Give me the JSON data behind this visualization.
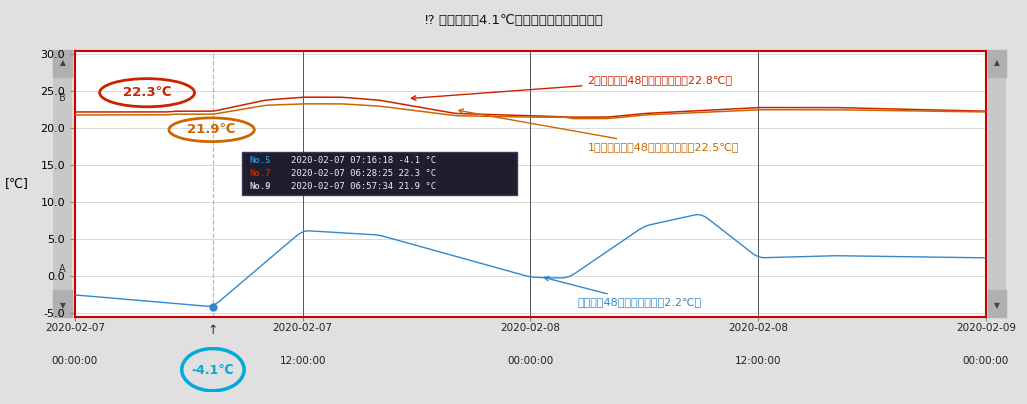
{
  "title": "⁉ 最低気温－4.1℃を観測した時の室内温度",
  "ylabel": "[℃]",
  "ylim": [
    -5.5,
    30.5
  ],
  "yticks": [
    -5.0,
    0.0,
    5.0,
    10.0,
    15.0,
    20.0,
    25.0,
    30.0
  ],
  "bg_color": "#e0e0e0",
  "plot_bg_color": "#ffffff",
  "border_color": "#cc0000",
  "grid_color": "#cccccc",
  "line2f_color": "#cc2200",
  "line1f_color": "#cc6600",
  "lineout_color": "#3388cc",
  "label_2f": "2階ホール（48時間の平均温剤22.8℃）",
  "label_1f": "1階リビング（48時間の平均温剤22.5℃）",
  "label_out": "外気温（48時間の平均温剤2.2℃）",
  "tooltip_line1_label": "No.5",
  "tooltip_line1_text": "2020-02-07 07:16:18 -4.1 °C",
  "tooltip_line2_label": "No.7",
  "tooltip_line2_text": "2020-02-07 06:28:25 22.3 °C",
  "tooltip_line3_label": "No.9",
  "tooltip_line3_text": "2020-02-07 06:57:34 21.9 °C",
  "annot_22_3": "22.3℃",
  "annot_21_9": "21.9℃",
  "annot_min": "-4.1℃",
  "x_end_hours": 48,
  "xtick_labels_line1": [
    "2020-02-07",
    "2020-02-07",
    "2020-02-08",
    "2020-02-08",
    "2020-02-09"
  ],
  "xtick_labels_line2": [
    "00:00:00",
    "12:00:00",
    "00:00:00",
    "12:00:00",
    "00:00:00"
  ],
  "xtick_positions": [
    0,
    12,
    24,
    36,
    48
  ],
  "vertical_line_x": 7.27,
  "min_point_x": 7.27,
  "min_point_y": -4.1
}
